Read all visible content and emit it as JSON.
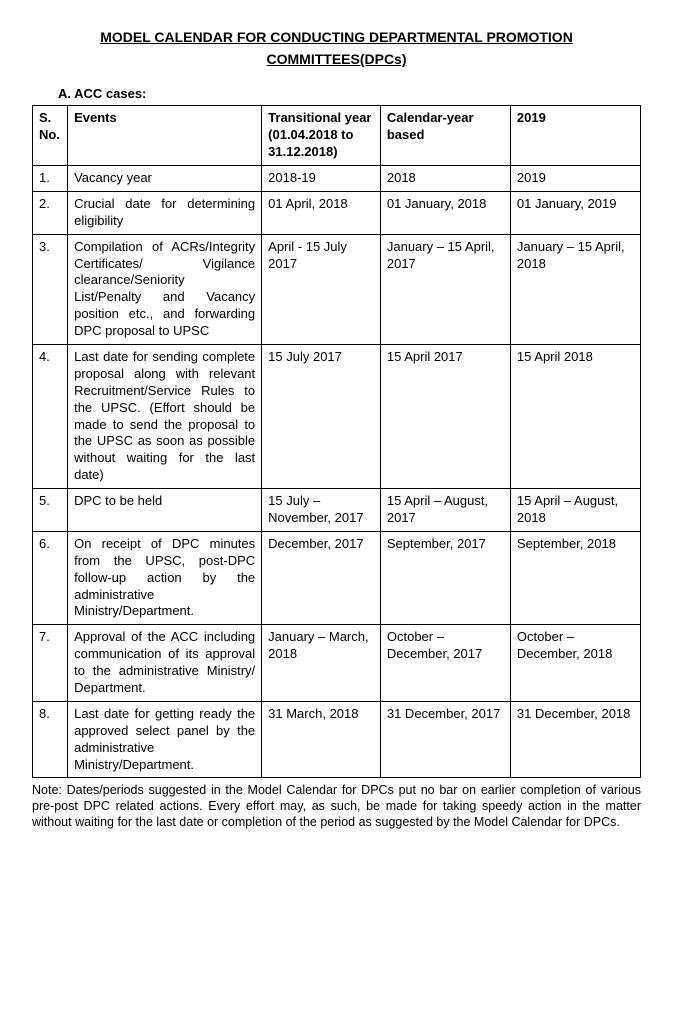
{
  "title_line1": "MODEL CALENDAR FOR CONDUCTING DEPARTMENTAL PROMOTION",
  "title_line2": "COMMITTEES(DPCs)",
  "section_label": "A.  ACC cases:",
  "table": {
    "headers": {
      "sno": "S. No.",
      "events": "Events",
      "transitional": "Transitional year (01.04.2018 to 31.12.2018)",
      "calendar": "Calendar-year based",
      "y2019": "2019"
    },
    "rows": [
      {
        "sno": "1.",
        "event": "Vacancy year",
        "trans": "2018-19",
        "cal": "2018",
        "y2019": "2019"
      },
      {
        "sno": "2.",
        "event": "Crucial date for determining eligibility",
        "trans": "01 April, 2018",
        "cal": "01 January, 2018",
        "y2019": "01 January, 2019"
      },
      {
        "sno": "3.",
        "event": "Compilation of ACRs/Integrity Certificates/ Vigilance clearance/Seniority List/Penalty and Vacancy position etc., and forwarding DPC proposal to UPSC",
        "trans": "April - 15 July 2017",
        "cal": "January – 15 April, 2017",
        "y2019": "January – 15 April, 2018"
      },
      {
        "sno": "4.",
        "event": "Last date for sending complete proposal along with relevant Recruitment/Service Rules to the UPSC. (Effort should be made to send the proposal to the UPSC as soon as possible without waiting for the last date)",
        "trans": "15 July 2017",
        "cal": "15 April 2017",
        "y2019": "15 April 2018"
      },
      {
        "sno": "5.",
        "event": "DPC to be held",
        "trans": "15 July – November, 2017",
        "cal": "15 April – August, 2017",
        "y2019": "15 April – August, 2018"
      },
      {
        "sno": "6.",
        "event": "On receipt of DPC minutes from the UPSC, post-DPC follow-up action by the administrative Ministry/Department.",
        "trans": "December, 2017",
        "cal": "September, 2017",
        "y2019": "September, 2018"
      },
      {
        "sno": "7.",
        "event": "Approval of the ACC including communication of its approval to the administrative Ministry/ Department.",
        "trans": "January – March, 2018",
        "cal": "October – December, 2017",
        "y2019": "October – December, 2018"
      },
      {
        "sno": "8.",
        "event": "Last date for getting ready the approved select panel by the administrative Ministry/Department.",
        "trans": "31 March, 2018",
        "cal": "31 December, 2017",
        "y2019": "31 December, 2018"
      }
    ]
  },
  "note": "Note: Dates/periods suggested in the Model Calendar for DPCs put no bar on earlier completion of various pre-post DPC related actions. Every effort may, as such, be made for taking speedy action in the matter without waiting for the last date or completion of the period as suggested by the Model Calendar for DPCs."
}
